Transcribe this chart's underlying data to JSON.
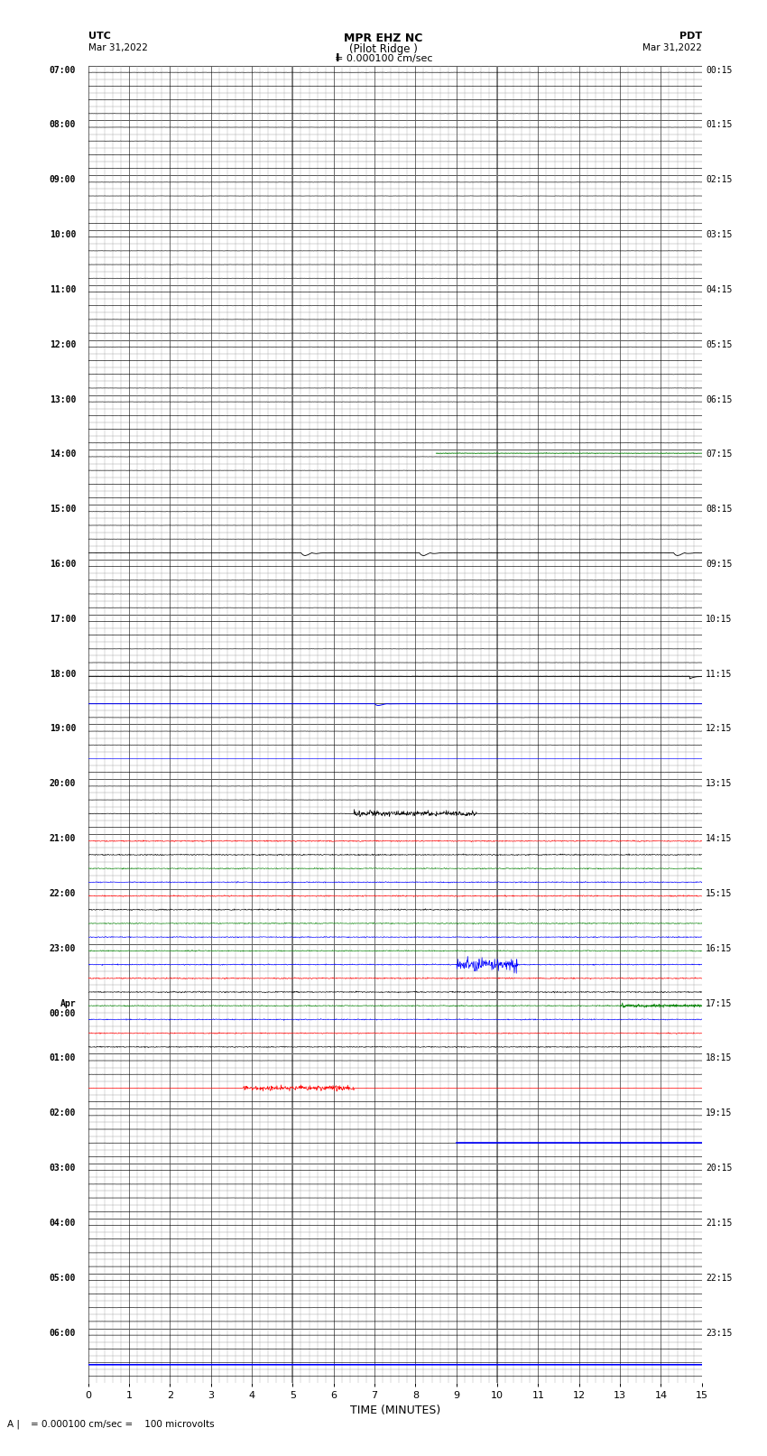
{
  "title_line1": "MPR EHZ NC",
  "title_line2": "(Pilot Ridge )",
  "title_line3": "I = 0.000100 cm/sec",
  "left_top_label": "UTC",
  "left_date": "Mar 31,2022",
  "right_top_label": "PDT",
  "right_date": "Mar 31,2022",
  "xlabel": "TIME (MINUTES)",
  "footer": "= 0.000100 cm/sec =    100 microvolts",
  "utc_times": [
    "07:00",
    "08:00",
    "09:00",
    "10:00",
    "11:00",
    "12:00",
    "13:00",
    "14:00",
    "15:00",
    "16:00",
    "17:00",
    "18:00",
    "19:00",
    "20:00",
    "21:00",
    "22:00",
    "23:00",
    "Apr\n00:00",
    "01:00",
    "02:00",
    "03:00",
    "04:00",
    "05:00",
    "06:00"
  ],
  "pdt_times": [
    "00:15",
    "01:15",
    "02:15",
    "03:15",
    "04:15",
    "05:15",
    "06:15",
    "07:15",
    "08:15",
    "09:15",
    "10:15",
    "11:15",
    "12:15",
    "13:15",
    "14:15",
    "15:15",
    "16:15",
    "17:15",
    "18:15",
    "19:15",
    "20:15",
    "21:15",
    "22:15",
    "23:15"
  ],
  "n_hours": 24,
  "sub_rows_per_hour": 4,
  "n_minutes": 15,
  "bg_color": "#ffffff",
  "grid_color": "#999999",
  "figwidth": 8.5,
  "figheight": 16.13
}
